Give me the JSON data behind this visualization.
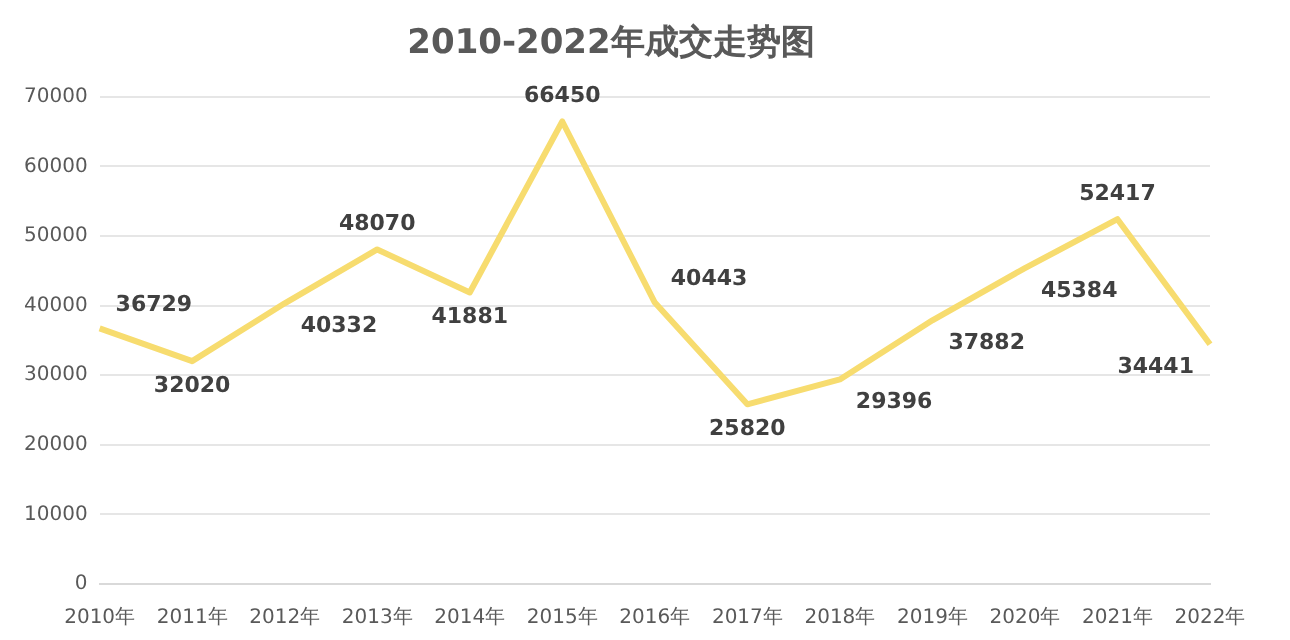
{
  "chart_data": {
    "type": "line",
    "title": "2010-2022年成交走势图",
    "categories": [
      "2010年",
      "2011年",
      "2012年",
      "2013年",
      "2014年",
      "2015年",
      "2016年",
      "2017年",
      "2018年",
      "2019年",
      "2020年",
      "2021年",
      "2022年"
    ],
    "values": [
      36729,
      32020,
      40332,
      48070,
      41881,
      66450,
      40443,
      25820,
      29396,
      37882,
      45384,
      52417,
      34441
    ],
    "color": "#f7dc6f",
    "ylim": [
      0,
      70000
    ],
    "yticks": [
      0,
      10000,
      20000,
      30000,
      40000,
      50000,
      60000,
      70000
    ],
    "grid": "y",
    "data_labels": true,
    "marker": "none",
    "legend": false
  }
}
